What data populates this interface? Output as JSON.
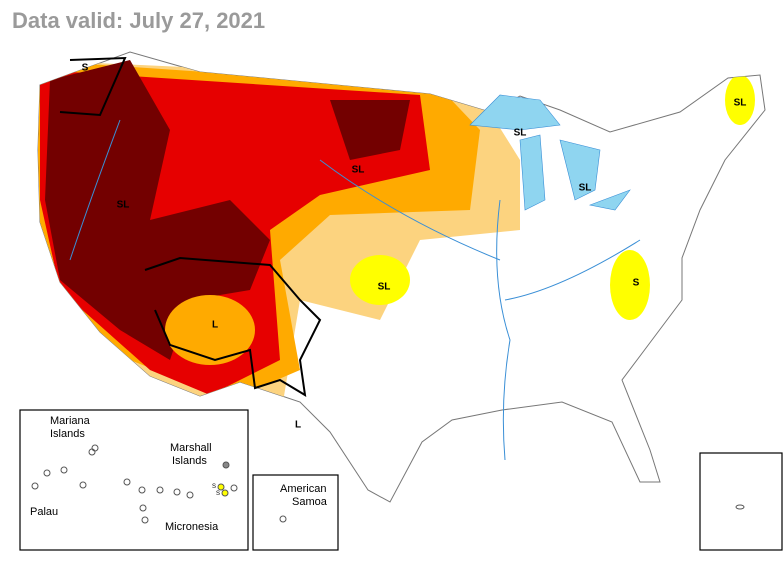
{
  "header": {
    "title": "Data valid: July 27, 2021"
  },
  "map": {
    "impact_labels": [
      "S",
      "SL",
      "SL",
      "SL",
      "SL",
      "SL",
      "SL",
      "S",
      "L",
      "L"
    ]
  },
  "insets": {
    "pacific": {
      "labels": [
        [
          "Mariana",
          "Islands"
        ],
        [
          "Marshall",
          "Islands"
        ],
        [
          "Palau"
        ],
        [
          "Micronesia"
        ]
      ],
      "impact_labels": [
        "S",
        "S"
      ]
    },
    "samoa": {
      "labels": [
        [
          "American",
          "Samoa"
        ]
      ]
    }
  }
}
